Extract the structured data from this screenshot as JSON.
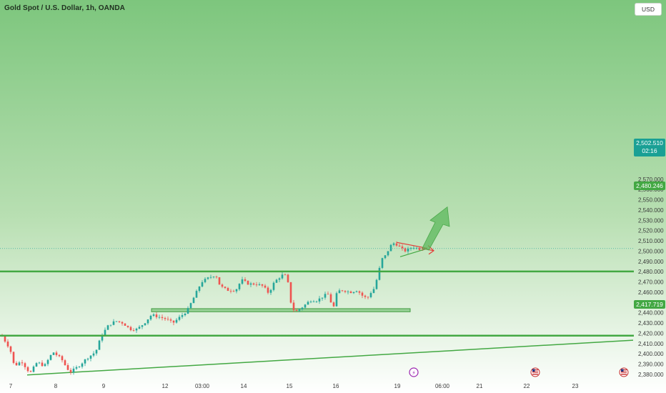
{
  "header": {
    "title": "Gold Spot / U.S. Dollar, 1h, OANDA",
    "currency_button": "USD"
  },
  "price_tags": {
    "last_price": "2,502.510",
    "countdown": "02:16",
    "resistance_level": "2,480.246",
    "support_level": "2,417.719"
  },
  "colors": {
    "up_candle": "#26a69a",
    "down_candle": "#ef5350",
    "level_line": "#43a843",
    "triangle_top": "#e53935",
    "triangle_bottom": "#43a843",
    "projection_arrow": "#5cb85c",
    "last_price_tag": "#1aa095"
  },
  "events": [
    {
      "icon": "lightning-icon",
      "x_label": "19"
    },
    {
      "icon": "us-flag-icon",
      "x_label": "22"
    },
    {
      "icon": "us-flag-icon",
      "x_label": "23"
    }
  ],
  "chart_data": {
    "type": "candlestick",
    "title": "Gold Spot / U.S. Dollar, 1h, OANDA",
    "y_axis": {
      "position": "right",
      "range": [
        2378,
        2578
      ],
      "ticks": [
        "2,380.000",
        "2,390.000",
        "2,400.000",
        "2,410.000",
        "2,420.000",
        "2,430.000",
        "2,440.000",
        "2,450.000",
        "2,460.000",
        "2,470.000",
        "2,480.000",
        "2,490.000",
        "2,500.000",
        "2,510.000",
        "2,520.000",
        "2,530.000",
        "2,540.000",
        "2,550.000",
        "2,560.000",
        "2,570.000"
      ]
    },
    "x_axis": {
      "ticks": [
        "7",
        "8",
        "9",
        "12",
        "03:00",
        "14",
        "15",
        "16",
        "19",
        "06:00",
        "21",
        "22",
        "23"
      ]
    },
    "levels": {
      "resistance": 2480.246,
      "support": 2417.719,
      "demand_zone": [
        2441,
        2444
      ]
    },
    "last_price": 2502.51,
    "grid": false
  }
}
